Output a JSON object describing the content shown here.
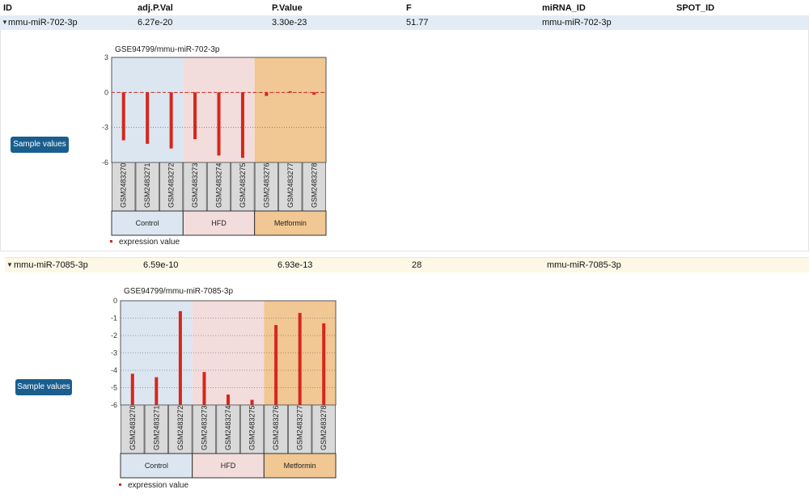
{
  "header": {
    "columns": [
      "ID",
      "adj.P.Val",
      "P.Value",
      "F",
      "miRNA_ID",
      "SPOT_ID"
    ]
  },
  "rows": [
    {
      "id": "mmu-miR-702-3p",
      "adj_p": "6.27e-20",
      "p": "3.30e-23",
      "f": "51.77",
      "mirna": "mmu-miR-702-3p",
      "spot": "",
      "button_label": "Sample values",
      "chart_data": {
        "type": "bar",
        "title": "GSE94799/mmu-miR-702-3p",
        "categories": [
          "GSM2483270",
          "GSM2483271",
          "GSM2483272",
          "GSM2483273",
          "GSM2483274",
          "GSM2483275",
          "GSM2483276",
          "GSM2483277",
          "GSM2483278"
        ],
        "series": [
          {
            "name": "expression value",
            "values": [
              -4.1,
              -4.4,
              -4.8,
              -4.0,
              -5.4,
              -5.6,
              -0.3,
              0.1,
              -0.2
            ]
          }
        ],
        "groups": [
          {
            "name": "Control",
            "from": 0,
            "to": 2,
            "color": "#dbe6f1"
          },
          {
            "name": "HFD",
            "from": 3,
            "to": 5,
            "color": "#f3dcdc"
          },
          {
            "name": "Metformin",
            "from": 6,
            "to": 8,
            "color": "#f1c794"
          }
        ],
        "ylim": [
          -6,
          3
        ],
        "yticks": [
          3,
          0,
          -3,
          -6
        ],
        "zero_line": true,
        "bar_color": "#d5271c",
        "grid": true,
        "legend_label": "expression value"
      }
    },
    {
      "id": "mmu-miR-7085-3p",
      "adj_p": "6.59e-10",
      "p": "6.93e-13",
      "f": "28",
      "mirna": "mmu-miR-7085-3p",
      "spot": "",
      "button_label": "Sample values",
      "chart_data": {
        "type": "bar",
        "title": "GSE94799/mmu-miR-7085-3p",
        "categories": [
          "GSM2483270",
          "GSM2483271",
          "GSM2483272",
          "GSM2483273",
          "GSM2483274",
          "GSM2483275",
          "GSM2483276",
          "GSM2483277",
          "GSM2483278"
        ],
        "series": [
          {
            "name": "expression value",
            "values": [
              -4.2,
              -4.4,
              -0.6,
              -4.1,
              -5.4,
              -5.7,
              -1.4,
              -0.7,
              -1.3
            ]
          }
        ],
        "groups": [
          {
            "name": "Control",
            "from": 0,
            "to": 2,
            "color": "#dbe6f1"
          },
          {
            "name": "HFD",
            "from": 3,
            "to": 5,
            "color": "#f3dcdc"
          },
          {
            "name": "Metformin",
            "from": 6,
            "to": 8,
            "color": "#f1c794"
          }
        ],
        "ylim": [
          -6,
          0
        ],
        "yticks": [
          0,
          -1,
          -2,
          -3,
          -4,
          -5,
          -6
        ],
        "zero_line": false,
        "bar_color": "#d5271c",
        "grid": true,
        "legend_label": "expression value"
      }
    }
  ]
}
